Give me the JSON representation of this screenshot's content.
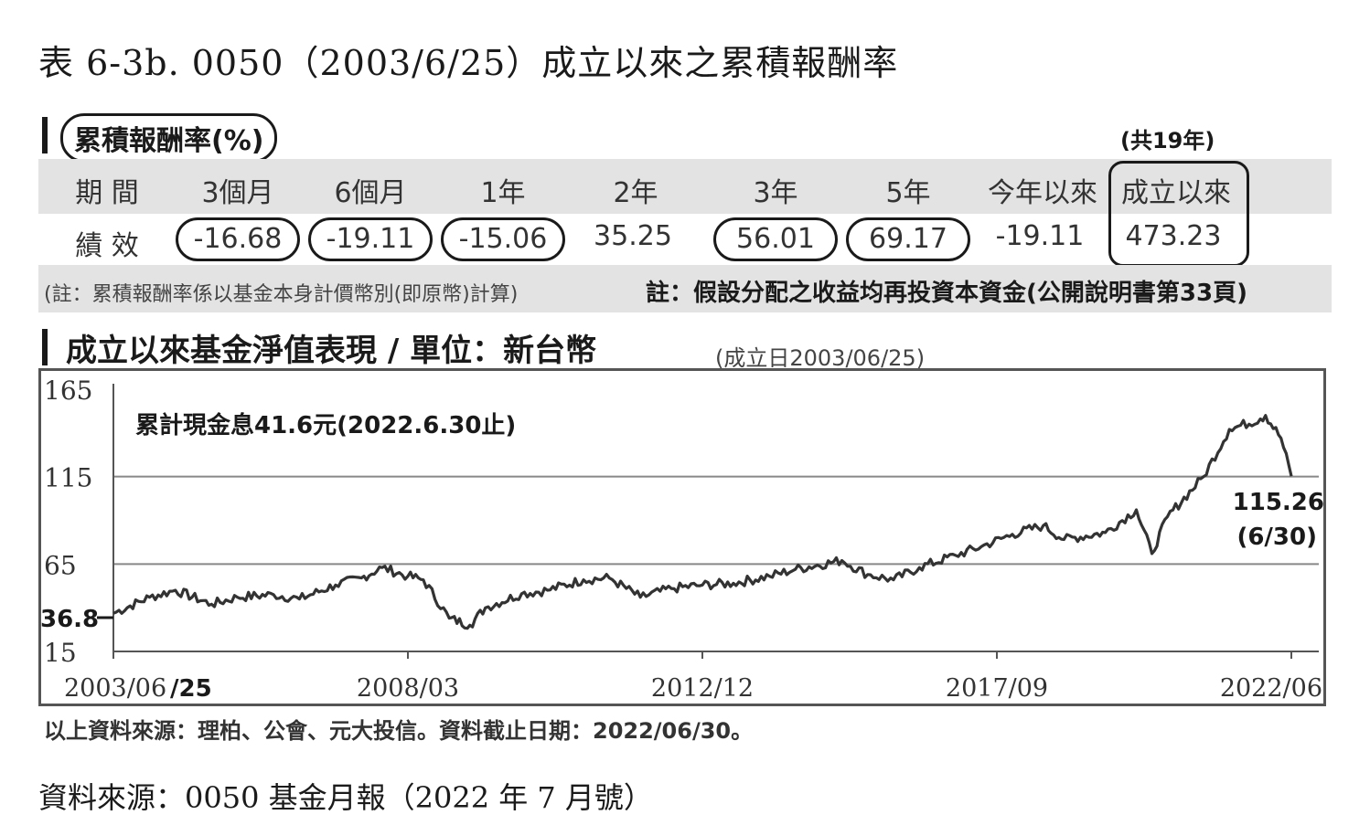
{
  "page_title": "表 6-3b. 0050（2003/6/25）成立以來之累積報酬率",
  "cumulative_return": {
    "title": "累積報酬率(%)",
    "total_years": "(共19年)",
    "period_label": "期 間",
    "perf_label": "績 效",
    "periods": [
      "3個月",
      "6個月",
      "1年",
      "2年",
      "3年",
      "5年",
      "今年以來",
      "成立以來"
    ],
    "values": [
      "-16.68",
      "-19.11",
      "-15.06",
      "35.25",
      "56.01",
      "69.17",
      "-19.11",
      "473.23"
    ],
    "note_left": "(註：累積報酬率係以基金本身計價幣別(即原幣)計算)",
    "note_right": "註：假設分配之收益均再投資本資金(公開說明書第33頁)"
  },
  "nav_section": {
    "title": "成立以來基金淨值表現 / 單位：新台幣",
    "inception": "(成立日2003/06/25)"
  },
  "chart_data": {
    "type": "line",
    "title": "成立以來基金淨值表現 / 單位：新台幣",
    "xlabel": "",
    "ylabel": "",
    "ylim": [
      15,
      165
    ],
    "yticks": [
      15,
      65,
      115,
      165
    ],
    "xlim": [
      "2003/06",
      "2022/06"
    ],
    "xticks": [
      "2003/06",
      "2008/03",
      "2012/12",
      "2017/09",
      "2022/06"
    ],
    "x_tick_extra": "/25",
    "grid": true,
    "annotations": {
      "dividend": "累計現金息41.6元(2022.6.30止)",
      "start_value": "36.8",
      "end_value": "115.26",
      "end_date": "(6/30)"
    },
    "series": [
      {
        "name": "",
        "color": "#333333",
        "x": [
          "2003/06",
          "2004/01",
          "2004/06",
          "2005/01",
          "2005/06",
          "2006/01",
          "2006/06",
          "2007/01",
          "2007/06",
          "2007/10",
          "2008/03",
          "2008/06",
          "2008/11",
          "2009/03",
          "2009/06",
          "2010/01",
          "2010/06",
          "2011/01",
          "2011/06",
          "2011/12",
          "2012/06",
          "2012/12",
          "2013/06",
          "2014/01",
          "2014/06",
          "2015/03",
          "2015/08",
          "2016/01",
          "2016/06",
          "2017/01",
          "2017/06",
          "2017/12",
          "2018/06",
          "2018/10",
          "2019/06",
          "2019/12",
          "2020/03",
          "2020/06",
          "2021/01",
          "2021/06",
          "2021/12",
          "2022/01",
          "2022/04",
          "2022/06"
        ],
        "values": [
          36.8,
          46.0,
          50.0,
          42.0,
          46.0,
          47.5,
          45.0,
          53.0,
          57.0,
          63.0,
          58.0,
          56.0,
          34.0,
          30.0,
          40.0,
          48.0,
          50.0,
          56.0,
          57.0,
          46.0,
          51.0,
          53.0,
          54.0,
          58.0,
          62.0,
          67.0,
          59.0,
          56.0,
          63.0,
          70.0,
          75.0,
          82.0,
          87.0,
          79.0,
          83.0,
          96.0,
          71.0,
          92.0,
          115.0,
          142.0,
          148.0,
          150.0,
          137.0,
          115.26
        ]
      }
    ]
  },
  "source_note": "以上資料來源：理柏、公會、元大投信。資料截止日期：2022/06/30。",
  "bottom_source": "資料來源：0050 基金月報（2022 年 7 月號）"
}
